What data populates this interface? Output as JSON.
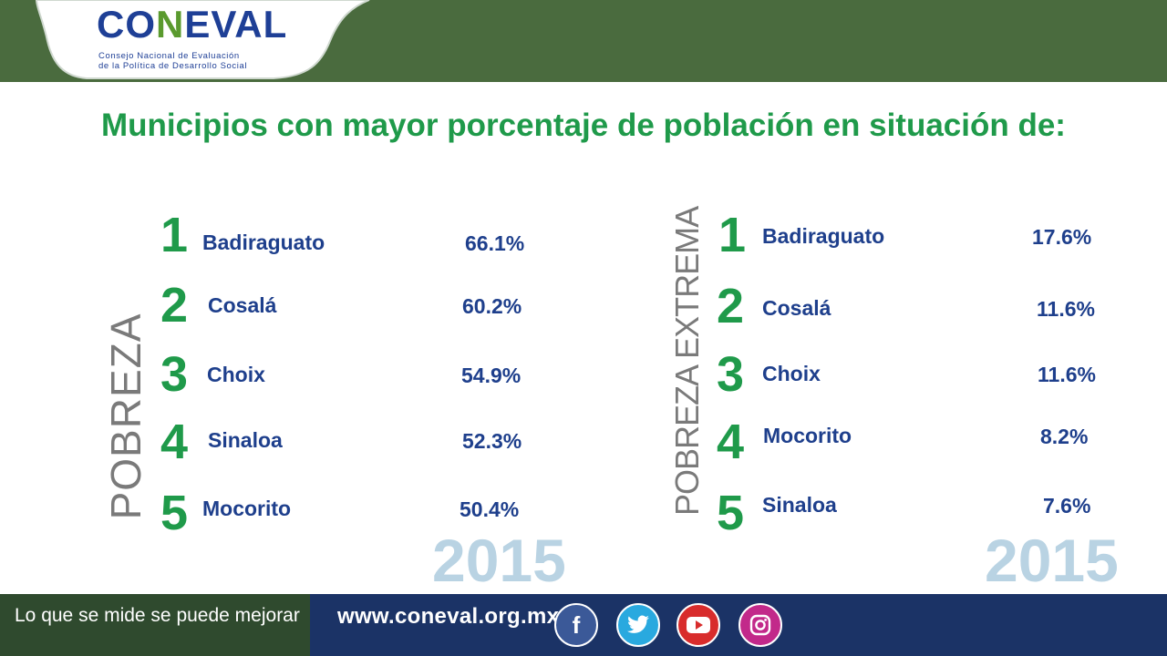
{
  "header": {
    "logo_text_a": "CO",
    "logo_text_n": "N",
    "logo_text_b": "EVAL",
    "logo_sub_1": "Consejo Nacional de Evaluación",
    "logo_sub_2": "de la Política de Desarrollo Social"
  },
  "title": "Municipios con mayor porcentaje de población en situación de:",
  "pobreza": {
    "label": "POBREZA",
    "year": "2015",
    "items": [
      {
        "rank": "1",
        "name": "Badiraguato",
        "value": "66.1%"
      },
      {
        "rank": "2",
        "name": "Cosalá",
        "value": "60.2%"
      },
      {
        "rank": "3",
        "name": "Choix",
        "value": "54.9%"
      },
      {
        "rank": "4",
        "name": "Sinaloa",
        "value": "52.3%"
      },
      {
        "rank": "5",
        "name": "Mocorito",
        "value": "50.4%"
      }
    ]
  },
  "pobreza_extrema": {
    "label": "POBREZA EXTREMA",
    "year": "2015",
    "items": [
      {
        "rank": "1",
        "name": "Badiraguato",
        "value": "17.6%"
      },
      {
        "rank": "2",
        "name": "Cosalá",
        "value": "11.6%"
      },
      {
        "rank": "3",
        "name": "Choix",
        "value": "11.6%"
      },
      {
        "rank": "4",
        "name": "Mocorito",
        "value": "8.2%"
      },
      {
        "rank": "5",
        "name": "Sinaloa",
        "value": "7.6%"
      }
    ]
  },
  "footer": {
    "slogan": "Lo que se mide se puede mejorar",
    "url": "www.coneval.org.mx",
    "social": [
      {
        "icon": "facebook-icon",
        "glyph": "f",
        "color": "#3b5998"
      },
      {
        "icon": "twitter-icon",
        "glyph": "🐦",
        "color": "#29a9df"
      },
      {
        "icon": "youtube-icon",
        "glyph": "▶",
        "color": "#d82c2c"
      },
      {
        "icon": "instagram-icon",
        "glyph": "◎",
        "color": "#c2298a"
      }
    ]
  },
  "colors": {
    "header_green": "#4a6b3e",
    "title_green": "#1f9a4a",
    "text_blue": "#1e3f8c",
    "year_lightblue": "#b9d3e3",
    "footer_dark_green": "#2f4a2e",
    "footer_navy": "#1b3366"
  }
}
